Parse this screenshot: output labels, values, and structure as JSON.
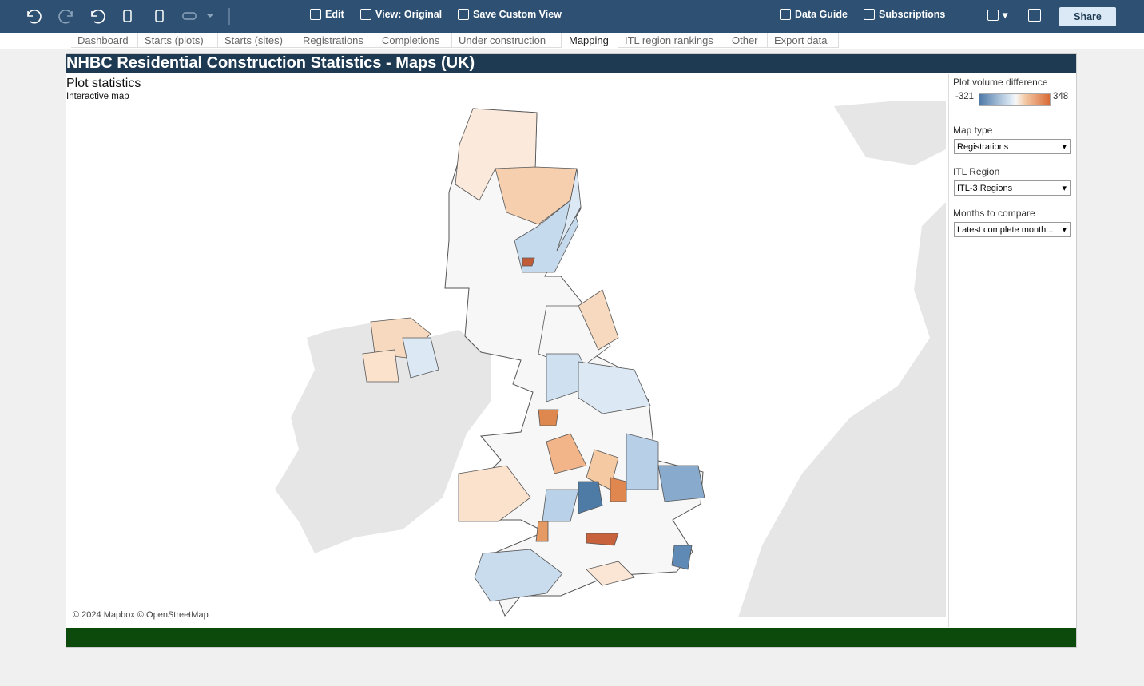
{
  "toolbar": {
    "left_buttons": [
      "Edit",
      "View: Original",
      "Save Custom View"
    ],
    "right_buttons": [
      "Data Guide",
      "Subscriptions"
    ],
    "share": "Share"
  },
  "tabs": [
    "Dashboard",
    "Starts (plots)",
    "Starts (sites)",
    "Registrations",
    "Completions",
    "Under construction",
    "Mapping",
    "ITL region rankings",
    "Other",
    "Export data"
  ],
  "active_tab": 6,
  "dashboard": {
    "title": "NHBC Residential Construction Statistics - Maps (UK)",
    "subtitle": "Plot statistics",
    "caption": "Interactive map",
    "attribution": "© 2024 Mapbox © OpenStreetMap",
    "legend": {
      "title": "Plot volume difference",
      "min": -321,
      "max": 348
    },
    "filters": [
      {
        "label": "Map type",
        "value": "Registrations"
      },
      {
        "label": "ITL Region",
        "value": "ITL-3 Regions"
      },
      {
        "label": "Months to compare",
        "value": "Latest complete month..."
      }
    ]
  }
}
